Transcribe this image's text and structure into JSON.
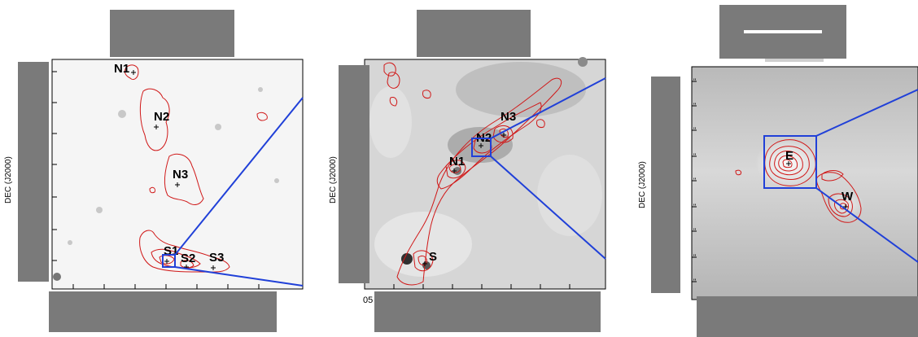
{
  "figure": {
    "panels": [
      {
        "id": "left",
        "ylabel": "DEC (J2000)",
        "sources": [
          "N1",
          "N2",
          "N3",
          "S1",
          "S2",
          "S3"
        ],
        "colors": {
          "background": "#f5f5f5",
          "contour": "#d01818",
          "zoom_box": "#2040d8"
        }
      },
      {
        "id": "middle",
        "ylabel": "DEC (J2000)",
        "tick_label_fragment": "05",
        "sources": [
          "N1",
          "N2",
          "N3",
          "S"
        ],
        "colors": {
          "background": "#d6d6d6",
          "contour": "#d01818",
          "zoom_box": "#2040d8"
        }
      },
      {
        "id": "right",
        "ylabel": "DEC (J2000)",
        "tick_label_fragment": "2",
        "sources": [
          "E",
          "W"
        ],
        "colors": {
          "background": "#c8c8c8",
          "contour": "#d01818",
          "zoom_box": "#2040d8"
        }
      }
    ],
    "redaction_color": "#7a7a7a"
  }
}
